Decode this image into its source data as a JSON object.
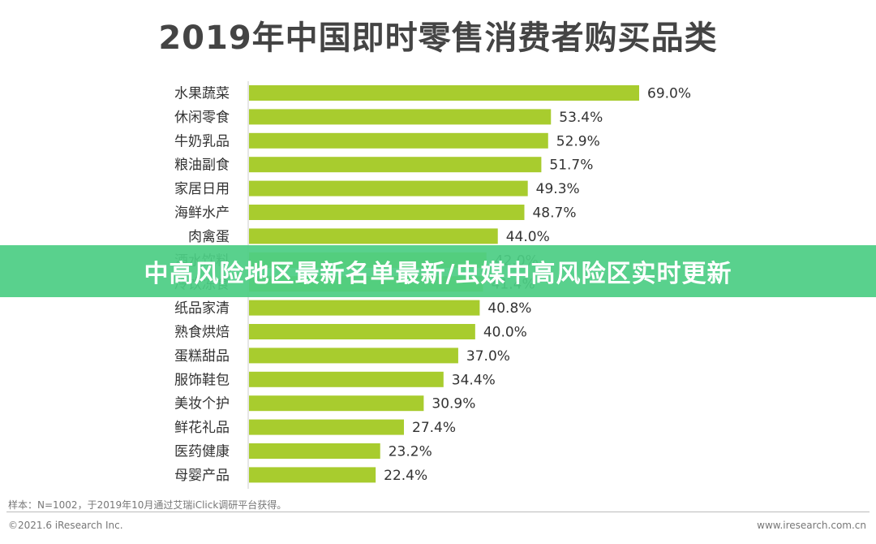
{
  "colors": {
    "bar": "#a8cc2e",
    "banner": "#4cce84",
    "axis": "#cccccc"
  },
  "banner": {
    "text": "中高风险地区最新名单最新/虫媒中高风险区实时更新"
  },
  "footer": {
    "note": "样本：N=1002，于2019年10月通过艾瑞iClick调研平台获得。",
    "copyright": "©2021.6 iResearch Inc.",
    "website": "www.iresearch.com.cn"
  },
  "chart_data": {
    "type": "bar",
    "orientation": "horizontal",
    "title": "2019年中国即时零售消费者购买品类",
    "categories": [
      "水果蔬菜",
      "休闲零食",
      "牛奶乳品",
      "粮油副食",
      "家居日用",
      "海鲜水产",
      "肉禽蛋",
      "酒水饮料",
      "冷饮冻食",
      "纸品家清",
      "熟食烘焙",
      "蛋糕甜品",
      "服饰鞋包",
      "美妆个护",
      "鲜花礼品",
      "医药健康",
      "母婴产品"
    ],
    "values": [
      69.0,
      53.4,
      52.9,
      51.7,
      49.3,
      48.7,
      44.0,
      42.0,
      41.4,
      40.8,
      40.0,
      37.0,
      34.4,
      30.9,
      27.4,
      23.2,
      22.4
    ],
    "value_labels": [
      "69.0%",
      "53.4%",
      "52.9%",
      "51.7%",
      "49.3%",
      "48.7%",
      "44.0%",
      "42.0%",
      "41.4%",
      "40.8%",
      "40.0%",
      "37.0%",
      "34.4%",
      "30.9%",
      "27.4%",
      "23.2%",
      "22.4%"
    ],
    "unit": "%",
    "xlim": [
      0,
      69.0
    ],
    "grid": false,
    "legend": "none"
  }
}
